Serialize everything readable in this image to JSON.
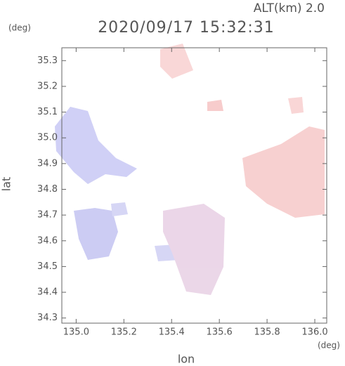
{
  "chart_data": {
    "type": "map",
    "title": "2020/09/17 15:32:31",
    "subtitle": "ALT(km) 2.0",
    "y_unit": "(deg)",
    "x_unit": "(deg)",
    "xlabel": "lon",
    "ylabel": "lat",
    "xlim": [
      134.94,
      136.05
    ],
    "ylim": [
      34.28,
      35.35
    ],
    "xticks": [
      {
        "value": 135,
        "label": "135.0"
      },
      135.2,
      135.4,
      135.6,
      135.8,
      {
        "value": 136,
        "label": "136.0"
      }
    ],
    "yticks": [
      34.3,
      34.4,
      34.5,
      34.6,
      34.7,
      34.8,
      34.9,
      {
        "value": 35,
        "label": "35.0"
      },
      35.1,
      35.2,
      35.3
    ]
  }
}
